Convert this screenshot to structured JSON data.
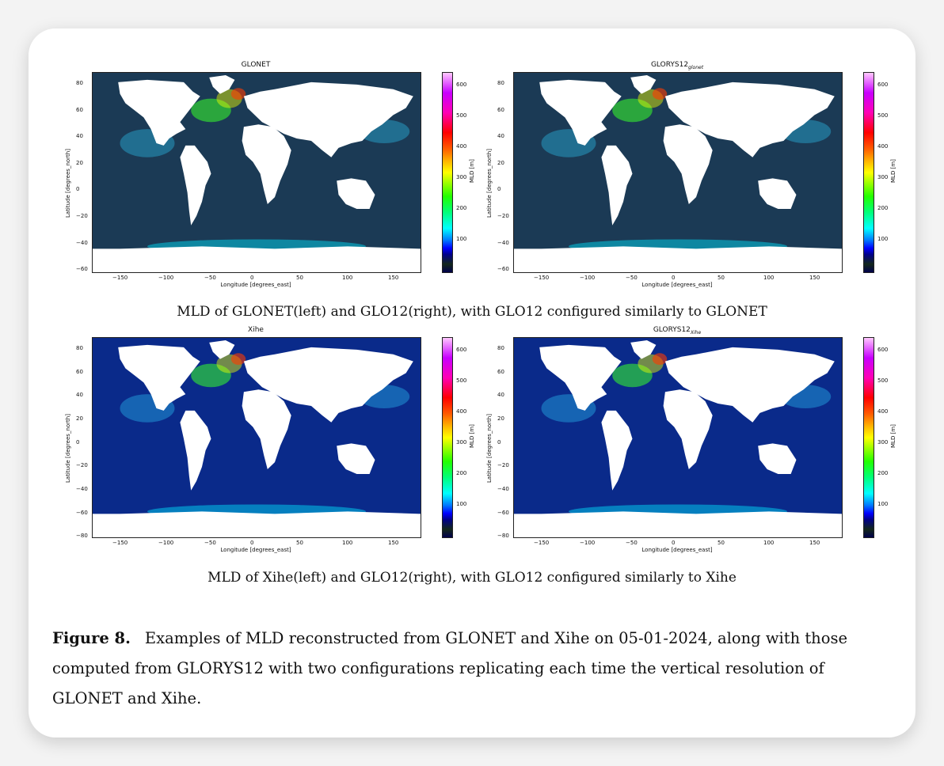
{
  "panels": [
    {
      "title": "GLONET",
      "title_sub": "",
      "ylabel": "Latitude [degrees_north]",
      "xlabel": "Longitude [degrees_east]",
      "yticks": [
        "80",
        "60",
        "40",
        "20",
        "0",
        "−20",
        "−40",
        "−60"
      ],
      "xticks": [
        "−150",
        "−100",
        "−50",
        "0",
        "50",
        "100",
        "150"
      ],
      "cbar_label": "MLD [m]",
      "cbar_ticks": [
        "600",
        "500",
        "400",
        "300",
        "200",
        "100"
      ],
      "ocean_color": "#1b3a55"
    },
    {
      "title": "GLORYS12",
      "title_sub": "glonet",
      "ylabel": "Latitude [degrees_north]",
      "xlabel": "Longitude [degrees_east]",
      "yticks": [
        "80",
        "60",
        "40",
        "20",
        "0",
        "−20",
        "−40",
        "−60"
      ],
      "xticks": [
        "−150",
        "−100",
        "−50",
        "0",
        "50",
        "100",
        "150"
      ],
      "cbar_label": "MLD [m]",
      "cbar_ticks": [
        "600",
        "500",
        "400",
        "300",
        "200",
        "100"
      ],
      "ocean_color": "#1b3a55"
    },
    {
      "title": "Xihe",
      "title_sub": "",
      "ylabel": "Latitude [degrees_north]",
      "xlabel": "Longitude [degrees_east]",
      "yticks": [
        "80",
        "60",
        "40",
        "20",
        "0",
        "−20",
        "−40",
        "−60",
        "−80"
      ],
      "xticks": [
        "−150",
        "−100",
        "−50",
        "0",
        "50",
        "100",
        "150"
      ],
      "cbar_label": "MLD [m]",
      "cbar_ticks": [
        "600",
        "500",
        "400",
        "300",
        "200",
        "100"
      ],
      "ocean_color": "#0a2a8a"
    },
    {
      "title": "GLORYS12",
      "title_sub": "Xihe",
      "ylabel": "Latitude [degrees_north]",
      "xlabel": "Longitude [degrees_east]",
      "yticks": [
        "80",
        "60",
        "40",
        "20",
        "0",
        "−20",
        "−40",
        "−60",
        "−80"
      ],
      "xticks": [
        "−150",
        "−100",
        "−50",
        "0",
        "50",
        "100",
        "150"
      ],
      "cbar_label": "MLD [m]",
      "cbar_ticks": [
        "600",
        "500",
        "400",
        "300",
        "200",
        "100"
      ],
      "ocean_color": "#0a2a8a"
    }
  ],
  "row1_caption": "MLD of GLONET(left) and GLO12(right), with GLO12 configured similarly to GLONET",
  "row2_caption": "MLD of Xihe(left) and GLO12(right), with GLO12 configured similarly to Xihe",
  "figure_label": "Figure 8.",
  "figure_text": "Examples of MLD reconstructed from GLONET and Xihe on 05-01-2024, along with those computed from GLORYS12 with two configurations replicating each time the vertical resolution of GLONET and Xihe."
}
